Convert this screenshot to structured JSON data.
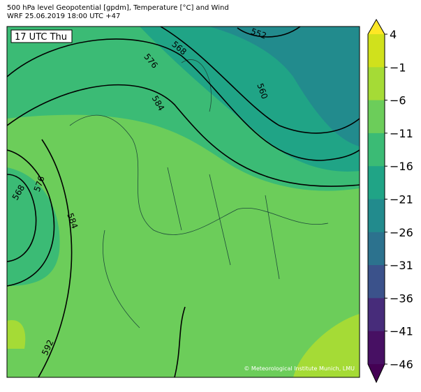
{
  "header": {
    "title": "500 hPa level Geopotential [gpdm], Temperature [°C] and Wind",
    "subtitle": "WRF 25.06.2019 18:00 UTC +47"
  },
  "map": {
    "time_label": "17 UTC Thu",
    "contour_labels": [
      "552",
      "560",
      "568",
      "576",
      "584",
      "576",
      "568",
      "584",
      "592"
    ],
    "copyright": "© Meteorological Institute Munich, LMU"
  },
  "colorbar": {
    "labels": [
      "4",
      "−1",
      "−6",
      "−11",
      "−16",
      "−21",
      "−26",
      "−31",
      "−36",
      "−41",
      "−46"
    ],
    "colors": [
      "#fde725",
      "#d0e11c",
      "#a5db36",
      "#6ccd5a",
      "#3bbb75",
      "#20a486",
      "#228b8d",
      "#2c728e",
      "#3b528b",
      "#472c7a",
      "#471063",
      "#440154"
    ]
  }
}
